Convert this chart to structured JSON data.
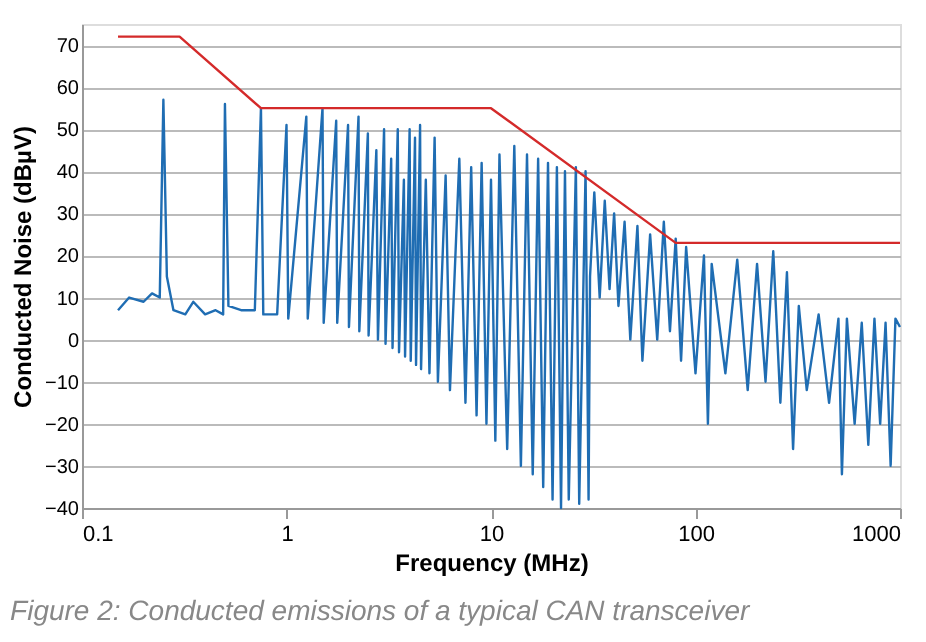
{
  "chart_data": {
    "type": "line",
    "xlabel": "Frequency (MHz)",
    "ylabel": "Conducted Noise (dBµV)",
    "log": "x",
    "grid": "y",
    "xlim": [
      0.1,
      1000
    ],
    "xticks": [
      0.1,
      1,
      10,
      100,
      1000
    ],
    "ylim": [
      -40,
      75
    ],
    "yticks": [
      -40,
      -30,
      -20,
      -10,
      0,
      10,
      20,
      30,
      40,
      50,
      60,
      70
    ],
    "annotations": [
      "Figure 2: Conducted emissions of a typical CAN transceiver"
    ],
    "series": [
      {
        "color": "#1f6db3",
        "x": [
          0.15,
          0.17,
          0.2,
          0.22,
          0.24,
          0.25,
          0.26,
          0.28,
          0.32,
          0.35,
          0.4,
          0.45,
          0.49,
          0.5,
          0.52,
          0.6,
          0.7,
          0.75,
          0.77,
          0.9,
          1.0,
          1.02,
          1.25,
          1.27,
          1.5,
          1.52,
          1.75,
          1.77,
          2.0,
          2.02,
          2.25,
          2.27,
          2.5,
          2.52,
          2.75,
          2.8,
          3.0,
          3.05,
          3.25,
          3.3,
          3.5,
          3.55,
          3.75,
          3.8,
          4.0,
          4.05,
          4.25,
          4.3,
          4.5,
          4.55,
          4.8,
          5,
          5.3,
          5.5,
          6,
          6.3,
          7,
          7.5,
          8,
          8.5,
          9,
          9.5,
          10,
          10.5,
          11,
          12,
          13,
          14,
          15,
          16,
          17,
          18,
          19,
          20,
          21,
          22,
          23,
          24,
          26,
          27,
          29,
          30,
          30.5,
          32,
          34,
          36,
          38,
          40,
          42,
          45,
          48,
          52,
          55,
          60,
          65,
          70,
          75,
          80,
          85,
          90,
          100,
          110,
          115,
          120,
          140,
          160,
          180,
          200,
          220,
          240,
          260,
          280,
          300,
          320,
          350,
          400,
          450,
          500,
          520,
          550,
          600,
          650,
          700,
          750,
          800,
          850,
          900,
          950,
          1000
        ],
        "values": [
          7,
          10,
          9,
          11,
          10,
          57,
          15,
          7,
          6,
          9,
          6,
          7,
          6,
          56,
          8,
          7,
          7,
          55,
          6,
          6,
          51,
          5,
          53,
          5,
          55,
          4,
          52,
          4,
          51,
          3,
          53,
          2,
          49,
          1,
          45,
          0,
          50,
          -1,
          43,
          -2,
          50,
          -3,
          38,
          -4,
          50,
          -5,
          48,
          -6,
          51,
          -7,
          38,
          -8,
          48,
          -10,
          39,
          -12,
          43,
          -15,
          41,
          -18,
          42,
          -20,
          38,
          -24,
          44,
          -26,
          46,
          -30,
          44,
          -32,
          43,
          -35,
          42,
          -38,
          41,
          -40,
          40,
          -38,
          41,
          -39,
          40,
          -38,
          15,
          35,
          10,
          33,
          12,
          30,
          8,
          28,
          0,
          27,
          -5,
          25,
          0,
          28,
          2,
          24,
          -5,
          22,
          -8,
          20,
          -20,
          18,
          -8,
          19,
          -12,
          18,
          -10,
          21,
          -15,
          16,
          -26,
          8,
          -12,
          6,
          -15,
          5,
          -32,
          5,
          -20,
          4,
          -25,
          5,
          -20,
          4,
          -30,
          5,
          3
        ]
      },
      {
        "color": "#d42a2a",
        "x": [
          0.15,
          0.3,
          0.75,
          10,
          80,
          1000
        ],
        "values": [
          72,
          72,
          55,
          55,
          23,
          23
        ]
      }
    ]
  }
}
